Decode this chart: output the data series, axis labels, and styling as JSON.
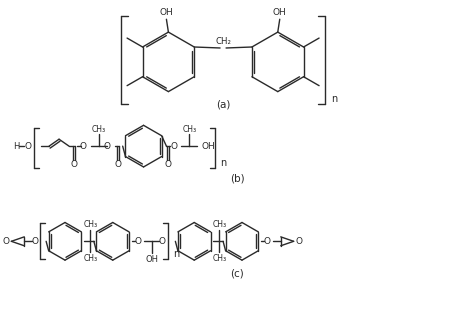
{
  "bg_color": "#ffffff",
  "line_color": "#2a2a2a",
  "text_color": "#2a2a2a",
  "label_a": "(a)",
  "label_b": "(b)",
  "label_c": "(c)",
  "figsize": [
    4.74,
    3.24
  ],
  "dpi": 100
}
